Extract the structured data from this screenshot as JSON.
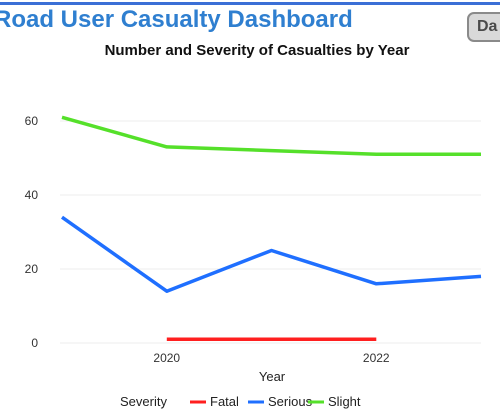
{
  "header": {
    "title": "Road User Casualty Dashboard",
    "badge_text": "Da"
  },
  "chart_data": {
    "type": "line",
    "title": "Number and Severity of Casualties by Year",
    "xlabel": "Year",
    "ylabel": "",
    "x": [
      2019,
      2020,
      2021,
      2022,
      2023
    ],
    "xlim": [
      2019,
      2023
    ],
    "ylim": [
      0,
      65
    ],
    "x_ticks": [
      2020,
      2022
    ],
    "y_ticks": [
      0,
      20,
      40,
      60
    ],
    "grid": true,
    "legend_title": "Severity",
    "legend_position": "bottom",
    "series": [
      {
        "name": "Fatal",
        "color": "#ff1f1f",
        "values": [
          null,
          1,
          1,
          1,
          null
        ]
      },
      {
        "name": "Serious",
        "color": "#1f6fff",
        "values": [
          34,
          14,
          25,
          16,
          18
        ]
      },
      {
        "name": "Slight",
        "color": "#55e02a",
        "values": [
          61,
          53,
          52,
          51,
          51
        ]
      }
    ]
  }
}
